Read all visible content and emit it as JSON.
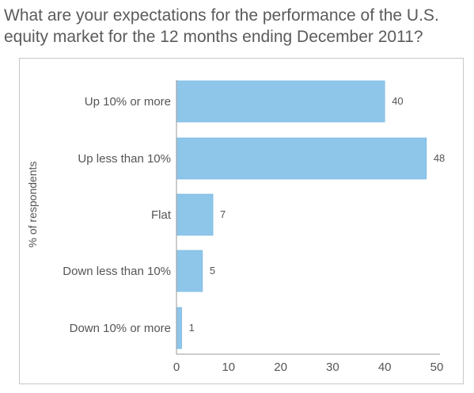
{
  "title": "What are your expectations for the performance of the U.S. equity market for the 12 months ending December 2011?",
  "chart_data": {
    "type": "bar",
    "orientation": "horizontal",
    "categories": [
      "Up 10% or more",
      "Up less than 10%",
      "Flat",
      "Down less than 10%",
      "Down 10% or more"
    ],
    "values": [
      40,
      48,
      7,
      5,
      1
    ],
    "data_labels": [
      "40",
      "48",
      "7",
      "5",
      "1"
    ],
    "xticks": [
      "0",
      "10",
      "20",
      "30",
      "40",
      "50"
    ],
    "xlim": [
      0,
      50
    ],
    "ylabel": "% of respondents",
    "grid": false,
    "bar_color": "#8ec6ea"
  }
}
